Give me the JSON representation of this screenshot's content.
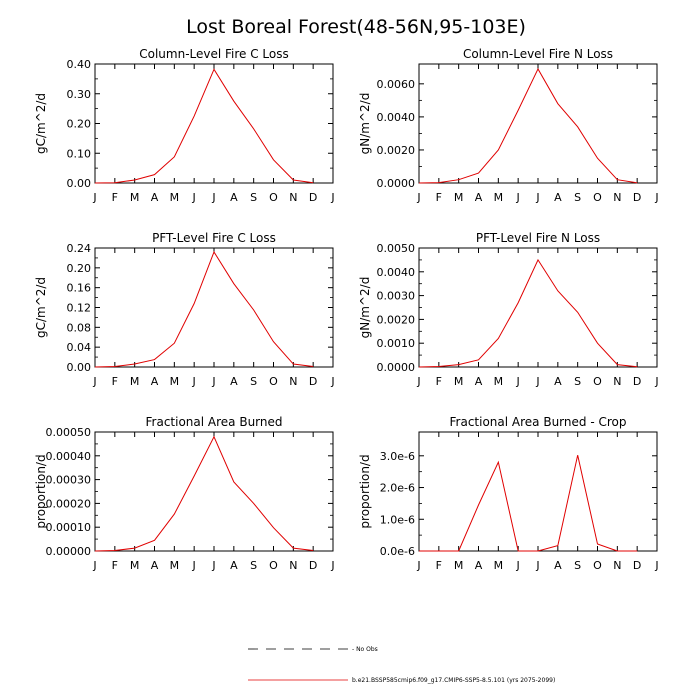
{
  "title": "Lost Boreal Forest(48-56N,95-103E)",
  "months": [
    "J",
    "F",
    "M",
    "A",
    "M",
    "J",
    "J",
    "A",
    "S",
    "O",
    "N",
    "D",
    "J"
  ],
  "colors": {
    "model": "#e00000",
    "obs": "#000000",
    "axis": "#000000"
  },
  "legend": {
    "obs_label": "- No Obs",
    "model_label": "b.e21.BSSP585cmip6.f09_g17.CMIP6-SSP5-8.5.101 (yrs 2075-2099)"
  },
  "chart_data": [
    {
      "type": "line",
      "title": "Column-Level Fire C Loss",
      "ylabel": "gC/m^2/d",
      "ylim": [
        0,
        0.4
      ],
      "yticks": [
        "0.00",
        "0.10",
        "0.20",
        "0.30",
        "0.40"
      ],
      "x": [
        0,
        1,
        2,
        3,
        4,
        5,
        6,
        7,
        8,
        9,
        10,
        11
      ],
      "series": [
        {
          "values": [
            0.0,
            0.001,
            0.01,
            0.028,
            0.088,
            0.225,
            0.382,
            0.275,
            0.182,
            0.078,
            0.01,
            0.001
          ]
        }
      ]
    },
    {
      "type": "line",
      "title": "Column-Level Fire N Loss",
      "ylabel": "gN/m^2/d",
      "ylim": [
        0,
        0.0072
      ],
      "yticks": [
        "0.0000",
        "0.0020",
        "0.0040",
        "0.0060"
      ],
      "x": [
        0,
        1,
        2,
        3,
        4,
        5,
        6,
        7,
        8,
        9,
        10,
        11
      ],
      "series": [
        {
          "values": [
            0.0,
            2e-05,
            0.0002,
            0.0006,
            0.002,
            0.0044,
            0.0069,
            0.0048,
            0.0034,
            0.0015,
            0.0002,
            1e-05
          ]
        }
      ]
    },
    {
      "type": "line",
      "title": "PFT-Level Fire C Loss",
      "ylabel": "gC/m^2/d",
      "ylim": [
        0,
        0.24
      ],
      "yticks": [
        "0.00",
        "0.04",
        "0.08",
        "0.12",
        "0.16",
        "0.20",
        "0.24"
      ],
      "x": [
        0,
        1,
        2,
        3,
        4,
        5,
        6,
        7,
        8,
        9,
        10,
        11
      ],
      "series": [
        {
          "values": [
            0.0,
            0.001,
            0.006,
            0.015,
            0.048,
            0.128,
            0.232,
            0.168,
            0.115,
            0.051,
            0.006,
            0.001
          ]
        }
      ]
    },
    {
      "type": "line",
      "title": "PFT-Level Fire N Loss",
      "ylabel": "gN/m^2/d",
      "ylim": [
        0,
        0.005
      ],
      "yticks": [
        "0.0000",
        "0.0010",
        "0.0020",
        "0.0030",
        "0.0040",
        "0.0050"
      ],
      "x": [
        0,
        1,
        2,
        3,
        4,
        5,
        6,
        7,
        8,
        9,
        10,
        11
      ],
      "series": [
        {
          "values": [
            0.0,
            2e-05,
            0.0001,
            0.0003,
            0.0012,
            0.0027,
            0.0045,
            0.0032,
            0.0023,
            0.001,
            0.0001,
            1e-05
          ]
        }
      ]
    },
    {
      "type": "line",
      "title": "Fractional Area Burned",
      "ylabel": "proportion/d",
      "ylim": [
        0,
        0.0005
      ],
      "yticks": [
        "0.00000",
        "0.00010",
        "0.00020",
        "0.00030",
        "0.00040",
        "0.00050"
      ],
      "x": [
        0,
        1,
        2,
        3,
        4,
        5,
        6,
        7,
        8,
        9,
        10,
        11
      ],
      "series": [
        {
          "values": [
            0.0,
            2e-06,
            1.2e-05,
            4.5e-05,
            0.000155,
            0.000315,
            0.00048,
            0.00029,
            0.0002,
            9.8e-05,
            1.2e-05,
            2e-06
          ]
        }
      ]
    },
    {
      "type": "line",
      "title": "Fractional Area Burned - Crop",
      "ylabel": "proportion/d",
      "ylim": [
        0,
        3.75e-06
      ],
      "yticks": [
        "0.0e-6",
        "1.0e-6",
        "2.0e-6",
        "3.0e-6"
      ],
      "x": [
        0,
        1,
        2,
        3,
        4,
        5,
        6,
        7,
        8,
        9,
        10,
        11
      ],
      "series": [
        {
          "values": [
            0.0,
            0.0,
            0.0,
            1.45e-06,
            2.8e-06,
            0.0,
            0.0,
            1.7e-07,
            3.02e-06,
            2.2e-07,
            0.0,
            0.0
          ]
        }
      ]
    }
  ]
}
